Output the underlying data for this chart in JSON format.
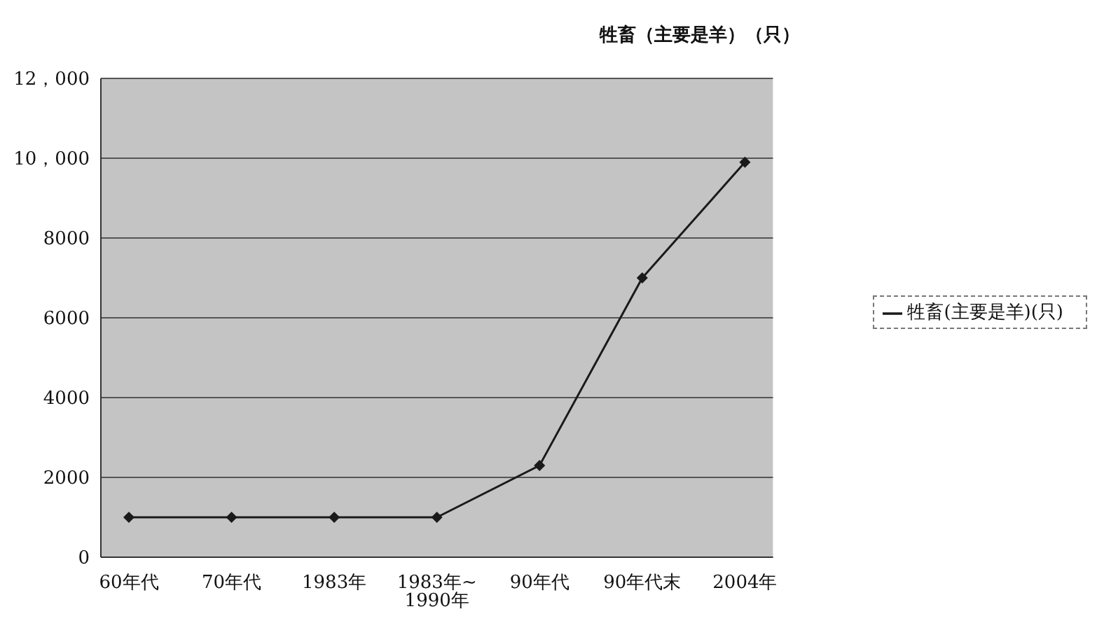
{
  "chart_data": {
    "type": "line",
    "title": "牲畜（主要是羊）（只）",
    "categories": [
      "60年代",
      "70年代",
      "1983年",
      "1983年~\n1990年",
      "90年代",
      "90年代末",
      "2004年"
    ],
    "series": [
      {
        "name": "牲畜(主要是羊)(只)",
        "color": "#1a1a1a",
        "values": [
          1000,
          1000,
          1000,
          1000,
          2300,
          7000,
          9900
        ]
      }
    ],
    "ylim": [
      0,
      12000
    ],
    "yticks": [
      0,
      2000,
      4000,
      6000,
      8000,
      {
        "value": 10000,
        "label": "10，000"
      },
      {
        "value": 12000,
        "label": "12，000"
      }
    ],
    "grid": "y",
    "legend": "right",
    "marker": "diamond",
    "line_style": "solid"
  }
}
